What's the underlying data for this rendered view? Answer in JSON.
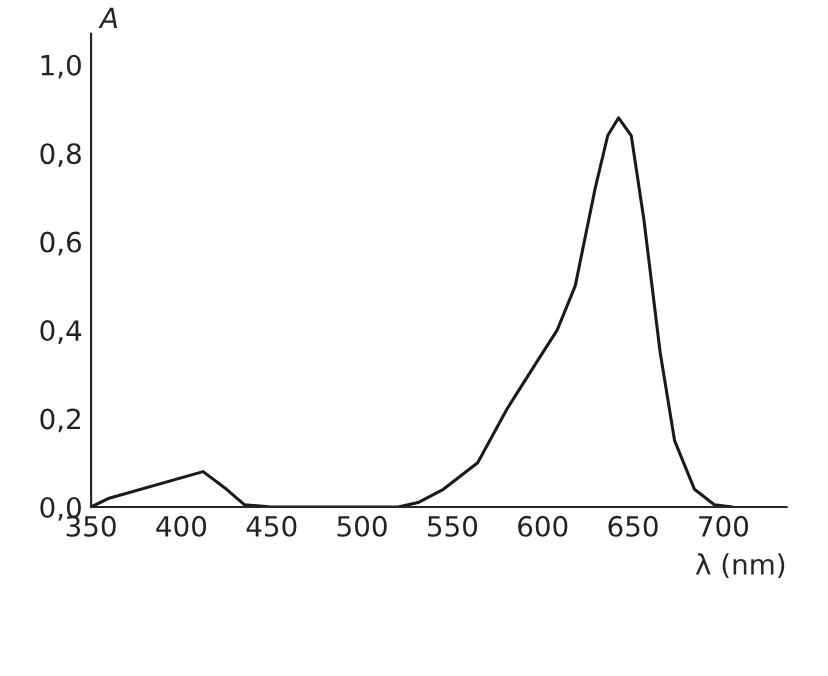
{
  "chart_data": {
    "type": "line",
    "ylabel": "A",
    "xlabel": "λ (nm)",
    "x": [
      350,
      360,
      412,
      425,
      435,
      450,
      500,
      520,
      531,
      545,
      564,
      580,
      597,
      608,
      618,
      629,
      636,
      642,
      649,
      656,
      665,
      673,
      684,
      695,
      705
    ],
    "series": [
      {
        "color": "#1a1a1a",
        "values": [
          0,
          0.02,
          0.08,
          0.04,
          0.005,
          0,
          0,
          0,
          0.01,
          0.04,
          0.1,
          0.22,
          0.33,
          0.4,
          0.5,
          0.72,
          0.84,
          0.88,
          0.84,
          0.65,
          0.35,
          0.15,
          0.04,
          0.005,
          0
        ]
      }
    ],
    "xlim": [
      350,
      735
    ],
    "ylim": [
      0,
      1.07
    ],
    "xticks": [
      350,
      400,
      450,
      500,
      550,
      600,
      650,
      700
    ],
    "yticks": [
      {
        "value": 0,
        "label": "0,0"
      },
      {
        "value": 0.2,
        "label": "0,2"
      },
      {
        "value": 0.4,
        "label": "0,4"
      },
      {
        "value": 0.6,
        "label": "0,6"
      },
      {
        "value": 0.8,
        "label": "0,8"
      },
      {
        "value": 1.0,
        "label": "1,0"
      }
    ],
    "grid": false,
    "marker": "none",
    "line_style": "solid"
  }
}
